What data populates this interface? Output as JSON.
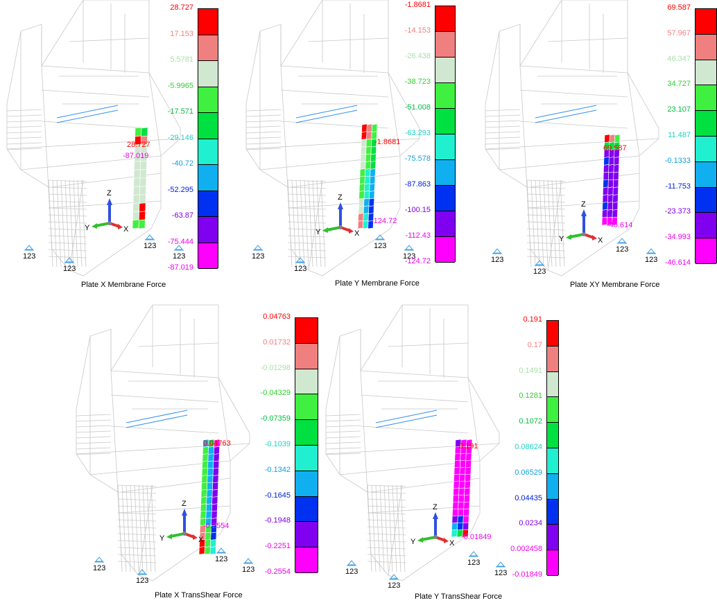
{
  "colors": [
    "#ff0000",
    "#f08080",
    "#d0e8d0",
    "#40f040",
    "#00e040",
    "#20f0d0",
    "#10b0f0",
    "#0030f0",
    "#8000f0",
    "#ff00ff"
  ],
  "label_colors": [
    "#ff0000",
    "#f08080",
    "#a8e0a8",
    "#30d030",
    "#00c040",
    "#20d0c0",
    "#10a0e0",
    "#0020e0",
    "#8000e0",
    "#f000f0"
  ],
  "support_label": "123",
  "axes": {
    "x": "X",
    "y": "Y",
    "z": "Z"
  },
  "panels": [
    {
      "caption": "Plate X Membrane Force",
      "values": [
        "28.727",
        "17.153",
        "5.5781",
        "-5.9965",
        "-17.571",
        "-29.146",
        "-40.72",
        "-52.295",
        "-63.87",
        "-75.444",
        "-87.019"
      ],
      "max_label": "28.727",
      "min_label": "-87.019"
    },
    {
      "caption": "Plate Y Membrane Force",
      "values": [
        "-1.8681",
        "-14.153",
        "-26.438",
        "-38.723",
        "-51.008",
        "-63.293",
        "-75.578",
        "-87.863",
        "-100.15",
        "-112.43",
        "-124.72"
      ],
      "max_label": "-1.8681",
      "min_label": "-124.72"
    },
    {
      "caption": "Plate XY Membrane Force",
      "values": [
        "69.587",
        "57.967",
        "46.347",
        "34.727",
        "23.107",
        "11.487",
        "-0.1333",
        "-11.753",
        "-23.373",
        "-34.993",
        "-46.614"
      ],
      "max_label": "69.587",
      "min_label": "-46.614"
    },
    {
      "caption": "Plate X TransShear Force",
      "values": [
        "0.04763",
        "0.01732",
        "-0.01298",
        "-0.04329",
        "-0.07359",
        "-0.1039",
        "-0.1342",
        "-0.1645",
        "-0.1948",
        "-0.2251",
        "-0.2554"
      ],
      "max_label": "0.04763",
      "min_label": "-0.2554"
    },
    {
      "caption": "Plate Y TransShear Force",
      "values": [
        "0.191",
        "0.17",
        "0.1491",
        "0.1281",
        "0.1072",
        "0.08624",
        "0.06529",
        "0.04435",
        "0.0234",
        "0.002458",
        "-0.01849"
      ],
      "max_label": "0.191",
      "min_label": "-0.01849"
    }
  ]
}
